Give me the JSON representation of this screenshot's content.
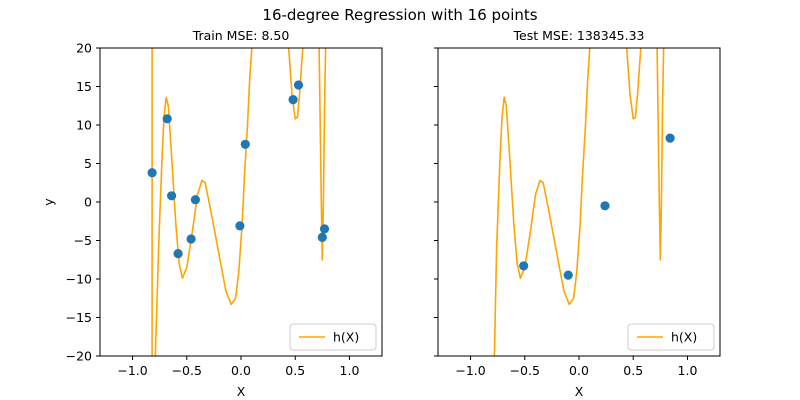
{
  "figure": {
    "title": "16-degree Regression with 16 points",
    "colors": {
      "curve": "#FFA500",
      "points": "#1F77B4",
      "axis": "#000000"
    }
  },
  "chart_data": [
    {
      "type": "scatter",
      "title": "Train MSE: 8.50",
      "xlabel": "X",
      "ylabel": "y",
      "xlim": [
        -1.3,
        1.3
      ],
      "ylim": [
        -20,
        20
      ],
      "xticks": [
        -1.0,
        -0.5,
        0.0,
        0.5,
        1.0
      ],
      "xtick_labels": [
        "−1.0",
        "−0.5",
        "0.0",
        "0.5",
        "1.0"
      ],
      "yticks": [
        -20,
        -15,
        -10,
        -5,
        0,
        5,
        10,
        15,
        20
      ],
      "ytick_labels": [
        "−20",
        "−15",
        "−10",
        "−5",
        "0",
        "5",
        "10",
        "15",
        "20"
      ],
      "legend": {
        "label": "h(X)",
        "placement": "lower-right"
      },
      "points": [
        {
          "x": -0.82,
          "y": 3.8
        },
        {
          "x": -0.68,
          "y": 10.8
        },
        {
          "x": -0.64,
          "y": 0.8
        },
        {
          "x": -0.58,
          "y": -6.7
        },
        {
          "x": -0.46,
          "y": -4.8
        },
        {
          "x": -0.42,
          "y": 0.3
        },
        {
          "x": -0.01,
          "y": -3.1
        },
        {
          "x": 0.04,
          "y": 7.5
        },
        {
          "x": 0.48,
          "y": 13.3
        },
        {
          "x": 0.53,
          "y": 15.2
        },
        {
          "x": 0.75,
          "y": -4.6
        },
        {
          "x": 0.77,
          "y": -3.5
        }
      ],
      "curve": {
        "name": "h(X)",
        "segments": [
          [
            [
              -0.82,
              20
            ],
            [
              -0.82,
              -20
            ]
          ],
          [
            [
              -0.79,
              -20
            ],
            [
              -0.76,
              -6
            ],
            [
              -0.73,
              5
            ],
            [
              -0.71,
              11
            ],
            [
              -0.69,
              13.6
            ],
            [
              -0.67,
              12.5
            ],
            [
              -0.64,
              6
            ],
            [
              -0.6,
              -3
            ],
            [
              -0.57,
              -8
            ],
            [
              -0.54,
              -9.9
            ],
            [
              -0.5,
              -8.5
            ],
            [
              -0.45,
              -4
            ],
            [
              -0.4,
              1
            ],
            [
              -0.36,
              2.8
            ],
            [
              -0.33,
              2.5
            ],
            [
              -0.28,
              -1
            ],
            [
              -0.2,
              -7
            ],
            [
              -0.14,
              -11.5
            ],
            [
              -0.09,
              -13.3
            ],
            [
              -0.05,
              -12.5
            ],
            [
              -0.02,
              -9
            ],
            [
              0.01,
              -3
            ],
            [
              0.03,
              3
            ],
            [
              0.06,
              10
            ],
            [
              0.08,
              16
            ],
            [
              0.1,
              20
            ]
          ],
          [
            [
              0.44,
              20
            ],
            [
              0.47,
              14
            ],
            [
              0.5,
              10.8
            ],
            [
              0.52,
              11
            ],
            [
              0.54,
              14
            ],
            [
              0.56,
              18
            ],
            [
              0.57,
              20
            ]
          ],
          [
            [
              0.72,
              20
            ],
            [
              0.73,
              10
            ],
            [
              0.74,
              0
            ],
            [
              0.75,
              -7.5
            ],
            [
              0.76,
              0
            ],
            [
              0.77,
              12
            ],
            [
              0.78,
              20
            ]
          ]
        ]
      }
    },
    {
      "type": "scatter",
      "title": "Test MSE: 138345.33",
      "xlabel": "X",
      "ylabel": "",
      "xlim": [
        -1.3,
        1.3
      ],
      "ylim": [
        -20,
        20
      ],
      "xticks": [
        -1.0,
        -0.5,
        0.0,
        0.5,
        1.0
      ],
      "xtick_labels": [
        "−1.0",
        "−0.5",
        "0.0",
        "0.5",
        "1.0"
      ],
      "yticks": [
        -20,
        -15,
        -10,
        -5,
        0,
        5,
        10,
        15,
        20
      ],
      "legend": {
        "label": "h(X)",
        "placement": "lower-right"
      },
      "points": [
        {
          "x": -0.51,
          "y": -8.3
        },
        {
          "x": -0.1,
          "y": -9.5
        },
        {
          "x": 0.24,
          "y": -0.5
        },
        {
          "x": 0.84,
          "y": 8.3
        }
      ],
      "curve": {
        "name": "h(X)",
        "segments": [
          [
            [
              -0.78,
              -20
            ],
            [
              -0.76,
              -6
            ],
            [
              -0.73,
              5
            ],
            [
              -0.71,
              11
            ],
            [
              -0.69,
              13.6
            ],
            [
              -0.67,
              12.5
            ],
            [
              -0.64,
              6
            ],
            [
              -0.6,
              -3
            ],
            [
              -0.57,
              -8
            ],
            [
              -0.54,
              -9.9
            ],
            [
              -0.5,
              -8.5
            ],
            [
              -0.45,
              -4
            ],
            [
              -0.4,
              1
            ],
            [
              -0.36,
              2.8
            ],
            [
              -0.33,
              2.5
            ],
            [
              -0.28,
              -1
            ],
            [
              -0.2,
              -7
            ],
            [
              -0.14,
              -11.5
            ],
            [
              -0.09,
              -13.3
            ],
            [
              -0.05,
              -12.5
            ],
            [
              -0.02,
              -9
            ],
            [
              0.01,
              -3
            ],
            [
              0.03,
              3
            ],
            [
              0.06,
              10
            ],
            [
              0.08,
              16
            ],
            [
              0.1,
              20
            ]
          ],
          [
            [
              0.44,
              20
            ],
            [
              0.47,
              14
            ],
            [
              0.5,
              10.8
            ],
            [
              0.52,
              11
            ],
            [
              0.54,
              14
            ],
            [
              0.56,
              18
            ],
            [
              0.57,
              20
            ]
          ],
          [
            [
              0.72,
              20
            ],
            [
              0.73,
              10
            ],
            [
              0.74,
              0
            ],
            [
              0.75,
              -7.5
            ],
            [
              0.76,
              0
            ],
            [
              0.77,
              12
            ],
            [
              0.78,
              20
            ]
          ]
        ]
      }
    }
  ]
}
